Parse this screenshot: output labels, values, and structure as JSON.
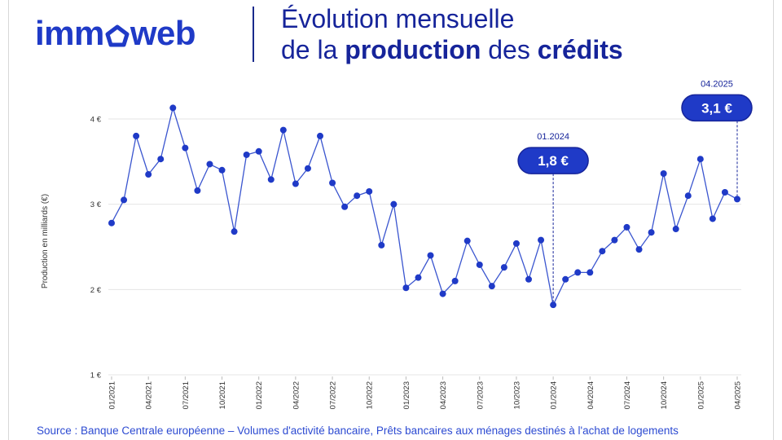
{
  "brand": {
    "logo_left": "imm",
    "logo_right": "web",
    "logo_icon": "house-icon"
  },
  "title": {
    "line1": "Évolution mensuelle",
    "line2_pre": "de la ",
    "line2_b1": "production",
    "line2_mid": " des ",
    "line2_b2": "crédits"
  },
  "source": "Source : Banque Centrale européenne – Volumes d'activité bancaire, Prêts bancaires aux ménages destinés à l'achat de logements",
  "colors": {
    "accent": "#1f3ac7",
    "dark": "#16249a",
    "line": "#3a55cf",
    "grid": "#e4e4e4"
  },
  "chart_data": {
    "type": "line",
    "ylabel": "Production en milliards (€)",
    "xlabel": "",
    "ylim": [
      1,
      4
    ],
    "yticks": [
      {
        "value": 1,
        "label": "1 €"
      },
      {
        "value": 2,
        "label": "2 €"
      },
      {
        "value": 3,
        "label": "3 €"
      },
      {
        "value": 4,
        "label": "4 €"
      }
    ],
    "grid": true,
    "x": [
      "01/2021",
      "02/2021",
      "03/2021",
      "04/2021",
      "05/2021",
      "06/2021",
      "07/2021",
      "08/2021",
      "09/2021",
      "10/2021",
      "11/2021",
      "12/2021",
      "01/2022",
      "02/2022",
      "03/2022",
      "04/2022",
      "05/2022",
      "06/2022",
      "07/2022",
      "08/2022",
      "09/2022",
      "10/2022",
      "11/2022",
      "12/2022",
      "01/2023",
      "02/2023",
      "03/2023",
      "04/2023",
      "05/2023",
      "06/2023",
      "07/2023",
      "08/2023",
      "09/2023",
      "10/2023",
      "11/2023",
      "12/2023",
      "01/2024",
      "02/2024",
      "03/2024",
      "04/2024",
      "05/2024",
      "06/2024",
      "07/2024",
      "08/2024",
      "09/2024",
      "10/2024",
      "11/2024",
      "12/2024",
      "01/2025",
      "02/2025",
      "03/2025",
      "04/2025"
    ],
    "tick_labels": [
      "01/2021",
      "04/2021",
      "07/2021",
      "10/2021",
      "01/2022",
      "04/2022",
      "07/2022",
      "10/2022",
      "01/2023",
      "04/2023",
      "07/2023",
      "10/2023",
      "01/2024",
      "04/2024",
      "07/2024",
      "10/2024",
      "01/2025",
      "04/2025"
    ],
    "series": [
      {
        "values": [
          2.78,
          3.05,
          3.8,
          3.35,
          3.53,
          4.13,
          3.66,
          3.16,
          3.47,
          3.4,
          2.68,
          3.58,
          3.62,
          3.29,
          3.87,
          3.24,
          3.42,
          3.8,
          3.25,
          2.97,
          3.1,
          3.15,
          2.52,
          3.0,
          2.02,
          2.14,
          2.4,
          1.95,
          2.1,
          2.57,
          2.29,
          2.04,
          2.26,
          2.54,
          2.12,
          2.58,
          1.82,
          2.12,
          2.2,
          2.2,
          2.45,
          2.58,
          2.73,
          2.47,
          2.67,
          3.36,
          2.71,
          3.1,
          3.53,
          2.83,
          3.14,
          3.06
        ]
      }
    ],
    "annotations": [
      {
        "x": "01/2024",
        "date": "01.2024",
        "label": "1,8 €"
      },
      {
        "x": "04/2025",
        "date": "04.2025",
        "label": "3,1 €"
      }
    ]
  }
}
